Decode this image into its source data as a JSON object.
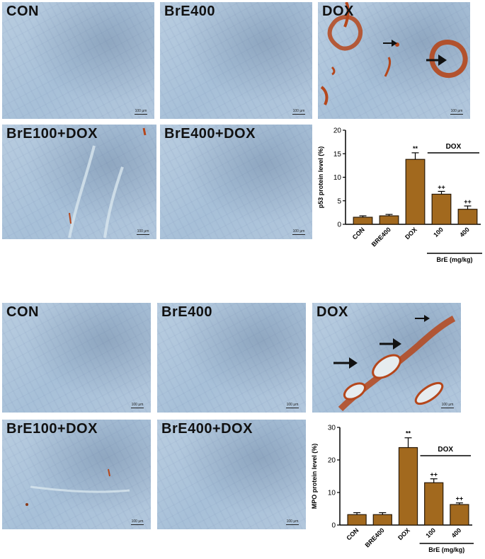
{
  "top": {
    "panels": [
      {
        "label": "CON",
        "scale": "100 μm"
      },
      {
        "label": "BrE400",
        "scale": "100 μm"
      },
      {
        "label": "DOX",
        "scale": "100 μm"
      },
      {
        "label": "BrE100+DOX",
        "scale": "100 μm"
      },
      {
        "label": "BrE400+DOX",
        "scale": "100 μm"
      }
    ]
  },
  "bottom": {
    "panels": [
      {
        "label": "CON",
        "scale": "100 μm"
      },
      {
        "label": "BrE400",
        "scale": "100 μm"
      },
      {
        "label": "DOX",
        "scale": "100 μm"
      },
      {
        "label": "BrE100+DOX",
        "scale": "100 μm"
      },
      {
        "label": "BrE400+DOX",
        "scale": "100 μm"
      }
    ]
  },
  "colors": {
    "bar_fill": "#a2691e",
    "bar_stroke": "#2a1a08",
    "stain": "#b5471c"
  },
  "chart_data": [
    {
      "type": "bar",
      "categories": [
        "CON",
        "BRE400",
        "DOX",
        "100",
        "400"
      ],
      "values": [
        1.5,
        1.8,
        13.8,
        6.4,
        3.2
      ],
      "errors": [
        0.3,
        0.3,
        1.4,
        0.6,
        0.7
      ],
      "annotations": [
        "",
        "",
        "**",
        "++",
        "++"
      ],
      "ylabel": "p53 protein level (%)",
      "ylim": [
        0,
        20
      ],
      "yticks": [
        0,
        5,
        10,
        15,
        20
      ],
      "group_label": "DOX",
      "xgroup_label": "BrE (mg/kg)",
      "grid": false
    },
    {
      "type": "bar",
      "categories": [
        "CON",
        "BRE400",
        "DOX",
        "100",
        "400"
      ],
      "values": [
        3.2,
        3.2,
        23.8,
        13.0,
        6.3
      ],
      "errors": [
        0.6,
        0.6,
        3.0,
        1.2,
        0.5
      ],
      "annotations": [
        "",
        "",
        "**",
        "++",
        "++"
      ],
      "ylabel": "MPO protein level (%)",
      "ylim": [
        0,
        30
      ],
      "yticks": [
        0,
        10,
        20,
        30
      ],
      "group_label": "DOX",
      "xgroup_label": "BrE (mg/kg)",
      "grid": false
    }
  ]
}
